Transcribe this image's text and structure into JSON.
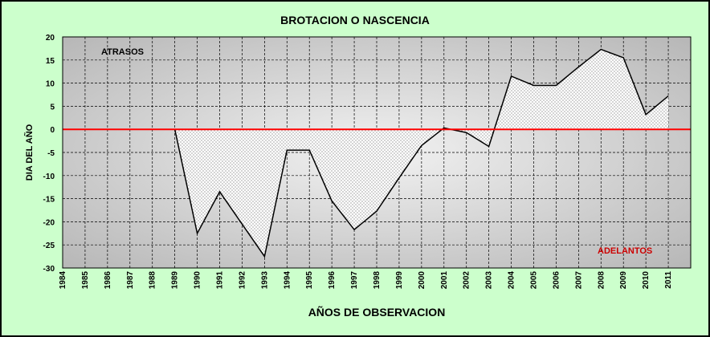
{
  "colors": {
    "frame_bg": "#ccffcc",
    "plot_center": "#f2f2f2",
    "plot_edge": "#b3b3b3",
    "grid": "#000000",
    "line": "#000000",
    "zero_line": "#ff0000",
    "atrasos": "#000000",
    "adelantos": "#cc0000"
  },
  "chart_data": {
    "type": "area",
    "title": "BROTACION O NASCENCIA",
    "xlabel": "AÑOS DE OBSERVACION",
    "ylabel": "DIA DEL AÑO",
    "ylim": [
      -30,
      20
    ],
    "ytick_step": 5,
    "grid": true,
    "reference_line": 0,
    "categories": [
      "1984",
      "1985",
      "1986",
      "1987",
      "1988",
      "1989",
      "1990",
      "1991",
      "1992",
      "1993",
      "1994",
      "1995",
      "1996",
      "1997",
      "1998",
      "1999",
      "2000",
      "2001",
      "2002",
      "2003",
      "2004",
      "2005",
      "2006",
      "2007",
      "2008",
      "2009",
      "2010",
      "2011"
    ],
    "values": [
      null,
      null,
      null,
      null,
      null,
      0,
      -22.5,
      -13.5,
      -20.5,
      -27.5,
      -4.5,
      -4.5,
      -15.5,
      -21.7,
      -17.7,
      -10.5,
      -3.5,
      0.3,
      -0.7,
      -3.7,
      11.5,
      9.5,
      9.5,
      13.5,
      17.3,
      15.5,
      3.2,
      7.2
    ],
    "annotations": [
      {
        "text": "ATRASOS",
        "color_key": "atrasos"
      },
      {
        "text": "ADELANTOS",
        "color_key": "adelantos"
      }
    ]
  }
}
